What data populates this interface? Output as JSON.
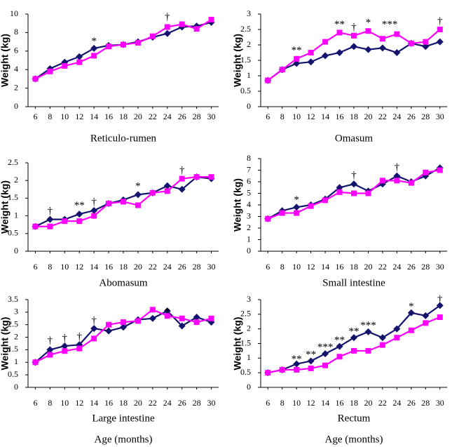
{
  "chart_data": [
    {
      "type": "line",
      "title": "Reticulo-rumen",
      "ylabel": "Weight (kg)",
      "x": [
        6,
        8,
        10,
        12,
        14,
        16,
        18,
        20,
        22,
        24,
        26,
        28,
        30
      ],
      "xlim": [
        5,
        31
      ],
      "xticks": [
        6,
        8,
        10,
        12,
        14,
        16,
        18,
        20,
        22,
        24,
        26,
        28,
        30
      ],
      "ylim": [
        0,
        10
      ],
      "yticks": [
        0,
        2,
        4,
        6,
        8,
        10
      ],
      "series": [
        {
          "color": "#14146e",
          "marker": "diamond",
          "values": [
            3.0,
            4.1,
            4.8,
            5.4,
            6.3,
            6.6,
            6.7,
            7.0,
            7.5,
            7.9,
            8.6,
            8.7,
            9.1
          ]
        },
        {
          "color": "#ff00ff",
          "marker": "square",
          "values": [
            3.0,
            3.8,
            4.4,
            4.8,
            5.5,
            6.5,
            6.7,
            6.9,
            7.6,
            8.6,
            8.9,
            8.4,
            9.4
          ]
        }
      ],
      "annotations": [
        {
          "text": "*",
          "x": 14,
          "y": 7.0
        },
        {
          "text": "†",
          "x": 24,
          "y": 9.6
        }
      ]
    },
    {
      "type": "line",
      "title": "Omasum",
      "ylabel": "Weight (kg)",
      "x": [
        6,
        8,
        10,
        12,
        14,
        16,
        18,
        20,
        22,
        24,
        26,
        28,
        30
      ],
      "xlim": [
        5,
        31
      ],
      "xticks": [
        6,
        8,
        10,
        12,
        14,
        16,
        18,
        20,
        22,
        24,
        26,
        28,
        30
      ],
      "ylim": [
        0,
        3
      ],
      "yticks": [
        0,
        0.5,
        1,
        1.5,
        2,
        2.5,
        3
      ],
      "series": [
        {
          "color": "#14146e",
          "marker": "diamond",
          "values": [
            0.85,
            1.2,
            1.4,
            1.45,
            1.65,
            1.75,
            1.95,
            1.85,
            1.9,
            1.75,
            2.05,
            1.95,
            2.1
          ]
        },
        {
          "color": "#ff00ff",
          "marker": "square",
          "values": [
            0.85,
            1.2,
            1.55,
            1.75,
            2.1,
            2.4,
            2.3,
            2.45,
            2.2,
            2.35,
            2.05,
            2.1,
            2.5
          ]
        }
      ],
      "annotations": [
        {
          "text": "**",
          "x": 10,
          "y": 1.8
        },
        {
          "text": "**",
          "x": 16,
          "y": 2.65
        },
        {
          "text": "†",
          "x": 18,
          "y": 2.55
        },
        {
          "text": "*",
          "x": 20,
          "y": 2.7
        },
        {
          "text": "***",
          "x": 23,
          "y": 2.65
        },
        {
          "text": "†",
          "x": 30,
          "y": 2.75
        }
      ]
    },
    {
      "type": "line",
      "title": "Abomasum",
      "ylabel": "Weight (kg)",
      "x": [
        6,
        8,
        10,
        12,
        14,
        16,
        18,
        20,
        22,
        24,
        26,
        28,
        30
      ],
      "xlim": [
        5,
        31
      ],
      "xticks": [
        6,
        8,
        10,
        12,
        14,
        16,
        18,
        20,
        22,
        24,
        26,
        28,
        30
      ],
      "ylim": [
        0,
        2.5
      ],
      "yticks": [
        0,
        0.5,
        1,
        1.5,
        2,
        2.5
      ],
      "series": [
        {
          "color": "#14146e",
          "marker": "diamond",
          "values": [
            0.7,
            0.9,
            0.9,
            1.05,
            1.15,
            1.35,
            1.45,
            1.6,
            1.65,
            1.85,
            1.75,
            2.1,
            2.05
          ]
        },
        {
          "color": "#ff00ff",
          "marker": "square",
          "values": [
            0.7,
            0.7,
            0.85,
            0.85,
            1.0,
            1.35,
            1.4,
            1.3,
            1.65,
            1.7,
            2.05,
            2.1,
            2.1
          ]
        }
      ],
      "annotations": [
        {
          "text": "†",
          "x": 8,
          "y": 1.12
        },
        {
          "text": "**",
          "x": 12,
          "y": 1.28
        },
        {
          "text": "†",
          "x": 14,
          "y": 1.38
        },
        {
          "text": "*",
          "x": 20,
          "y": 1.82
        },
        {
          "text": "†",
          "x": 26,
          "y": 2.27
        }
      ]
    },
    {
      "type": "line",
      "title": "Small intestine",
      "ylabel": "Weight (kg)",
      "x": [
        6,
        8,
        10,
        12,
        14,
        16,
        18,
        20,
        22,
        24,
        26,
        28,
        30
      ],
      "xlim": [
        5,
        31
      ],
      "xticks": [
        6,
        8,
        10,
        12,
        14,
        16,
        18,
        20,
        22,
        24,
        26,
        28,
        30
      ],
      "ylim": [
        0,
        8
      ],
      "yticks": [
        0,
        1,
        2,
        3,
        4,
        5,
        6,
        7,
        8
      ],
      "series": [
        {
          "color": "#14146e",
          "marker": "diamond",
          "values": [
            2.8,
            3.5,
            3.8,
            4.0,
            4.5,
            5.5,
            5.8,
            5.2,
            5.8,
            6.5,
            6.0,
            6.5,
            7.2
          ]
        },
        {
          "color": "#ff00ff",
          "marker": "square",
          "values": [
            2.8,
            3.3,
            3.3,
            3.9,
            4.4,
            5.1,
            5.0,
            5.0,
            6.1,
            6.1,
            5.9,
            6.8,
            7.0
          ]
        }
      ],
      "annotations": [
        {
          "text": "*",
          "x": 10,
          "y": 4.4
        },
        {
          "text": "†",
          "x": 18,
          "y": 6.5
        },
        {
          "text": "†",
          "x": 24,
          "y": 7.2
        }
      ]
    },
    {
      "type": "line",
      "title": "Large intestine",
      "ylabel": "Weight (kg)",
      "xlabel": "Age (months)",
      "x": [
        6,
        8,
        10,
        12,
        14,
        16,
        18,
        20,
        22,
        24,
        26,
        28,
        30
      ],
      "xlim": [
        5,
        31
      ],
      "xticks": [
        6,
        8,
        10,
        12,
        14,
        16,
        18,
        20,
        22,
        24,
        26,
        28,
        30
      ],
      "ylim": [
        0,
        3.5
      ],
      "yticks": [
        0,
        0.5,
        1,
        1.5,
        2,
        2.5,
        3,
        3.5
      ],
      "series": [
        {
          "color": "#14146e",
          "marker": "diamond",
          "values": [
            1.0,
            1.5,
            1.65,
            1.7,
            2.35,
            2.25,
            2.4,
            2.7,
            2.75,
            3.05,
            2.45,
            2.8,
            2.6
          ]
        },
        {
          "color": "#ff00ff",
          "marker": "square",
          "values": [
            1.0,
            1.3,
            1.45,
            1.55,
            1.95,
            2.5,
            2.6,
            2.65,
            3.1,
            2.85,
            2.75,
            2.6,
            2.75
          ]
        }
      ],
      "annotations": [
        {
          "text": "†",
          "x": 8,
          "y": 1.85
        },
        {
          "text": "†",
          "x": 10,
          "y": 1.95
        },
        {
          "text": "†",
          "x": 12,
          "y": 2.0
        },
        {
          "text": "†",
          "x": 14,
          "y": 2.65
        },
        {
          "text": "*",
          "x": 24,
          "y": 3.0
        }
      ]
    },
    {
      "type": "line",
      "title": "Rectum",
      "ylabel": "Weight (kg)",
      "xlabel": "Age (months)",
      "x": [
        6,
        8,
        10,
        12,
        14,
        16,
        18,
        20,
        22,
        24,
        26,
        28,
        30
      ],
      "xlim": [
        5,
        31
      ],
      "xticks": [
        6,
        8,
        10,
        12,
        14,
        16,
        18,
        20,
        22,
        24,
        26,
        28,
        30
      ],
      "ylim": [
        0,
        3
      ],
      "yticks": [
        0,
        0.5,
        1,
        1.5,
        2,
        2.5,
        3
      ],
      "series": [
        {
          "color": "#14146e",
          "marker": "diamond",
          "values": [
            0.5,
            0.6,
            0.8,
            0.9,
            1.15,
            1.4,
            1.7,
            1.9,
            1.7,
            2.0,
            2.55,
            2.45,
            2.8
          ]
        },
        {
          "color": "#ff00ff",
          "marker": "square",
          "values": [
            0.5,
            0.6,
            0.6,
            0.65,
            0.75,
            1.05,
            1.25,
            1.25,
            1.45,
            1.7,
            1.95,
            2.2,
            2.4
          ]
        }
      ],
      "annotations": [
        {
          "text": "**",
          "x": 10,
          "y": 0.95
        },
        {
          "text": "**",
          "x": 12,
          "y": 1.1
        },
        {
          "text": "***",
          "x": 14,
          "y": 1.35
        },
        {
          "text": "**",
          "x": 16,
          "y": 1.6
        },
        {
          "text": "**",
          "x": 18,
          "y": 1.9
        },
        {
          "text": "***",
          "x": 20,
          "y": 2.1
        },
        {
          "text": "*",
          "x": 26,
          "y": 2.75
        },
        {
          "text": "†",
          "x": 30,
          "y": 3.0
        }
      ]
    }
  ]
}
